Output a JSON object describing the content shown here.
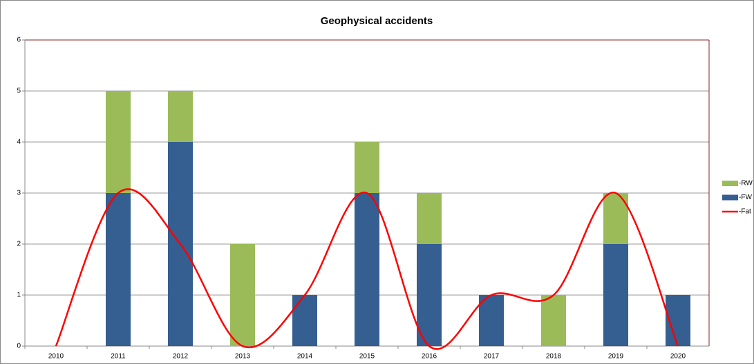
{
  "chart_data": {
    "type": "bar",
    "title": "Geophysical accidents",
    "categories": [
      "2010",
      "2011",
      "2012",
      "2013",
      "2014",
      "2015",
      "2016",
      "2017",
      "2018",
      "2019",
      "2020"
    ],
    "series": [
      {
        "name": "-FW",
        "color": "#355e91",
        "values": [
          0,
          3,
          4,
          0,
          1,
          3,
          2,
          1,
          0,
          2,
          1
        ]
      },
      {
        "name": "-RW",
        "color": "#9bbb59",
        "values": [
          0,
          2,
          1,
          2,
          0,
          1,
          1,
          0,
          1,
          1,
          0
        ]
      },
      {
        "name": "-Fat",
        "color": "#ff0000",
        "type": "line",
        "values": [
          0,
          3,
          2,
          0,
          1,
          3,
          0,
          1,
          1,
          3,
          0
        ]
      }
    ],
    "stacked": true,
    "ylim": [
      0,
      6
    ],
    "yticks": [
      0,
      1,
      2,
      3,
      4,
      5,
      6
    ],
    "grid": true,
    "legend": "right"
  }
}
